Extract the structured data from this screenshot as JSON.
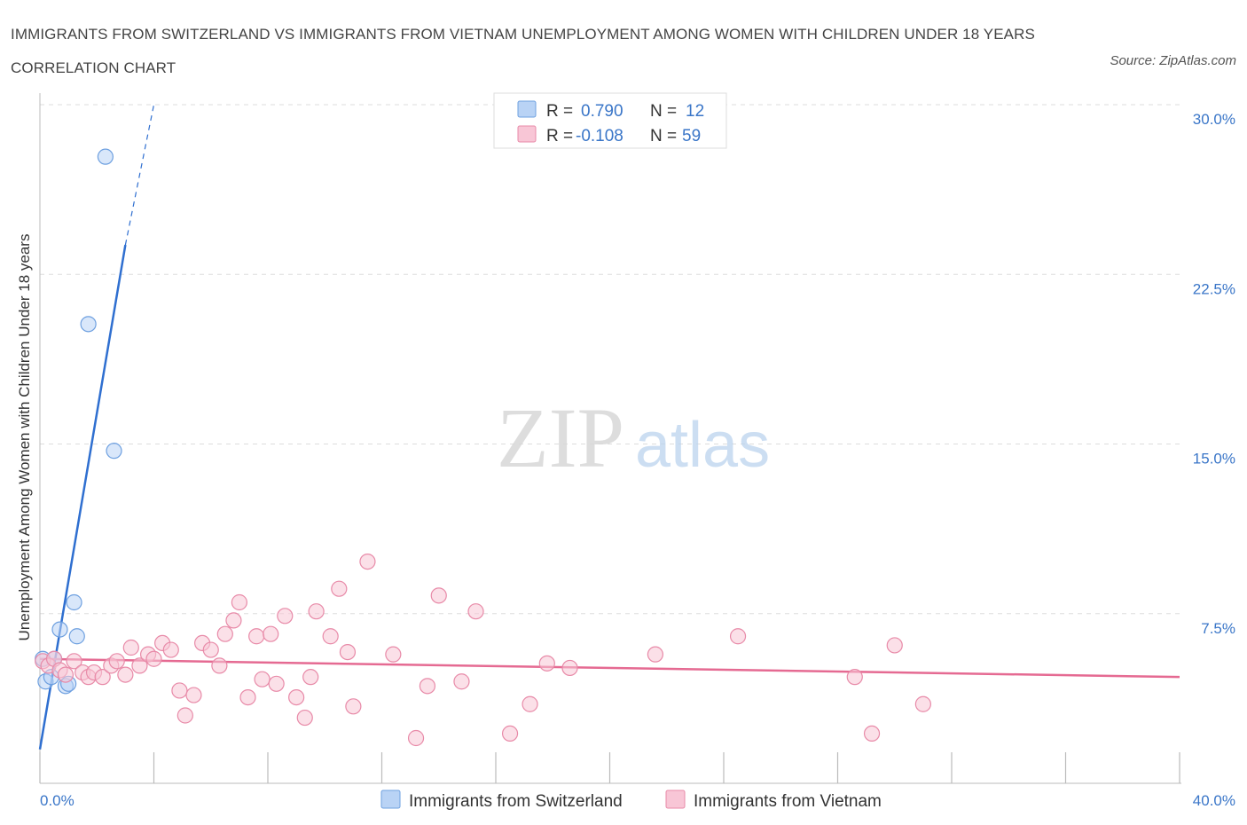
{
  "header": {
    "title": "IMMIGRANTS FROM SWITZERLAND VS IMMIGRANTS FROM VIETNAM UNEMPLOYMENT AMONG WOMEN WITH CHILDREN UNDER 18 YEARS CORRELATION CHART",
    "source": "Source: ZipAtlas.com"
  },
  "colors": {
    "switzerland": "#6ea0e0",
    "switzerland_fill": "#b9d3f5",
    "switzerland_line": "#2f6fd0",
    "vietnam": "#e88aa8",
    "vietnam_fill": "#f8c6d6",
    "vietnam_line": "#e56a92",
    "value_text": "#3a76c8"
  },
  "watermark": {
    "zip": "ZIP",
    "atlas": "atlas"
  },
  "chart_data": {
    "type": "scatter",
    "title": "IMMIGRANTS FROM SWITZERLAND VS IMMIGRANTS FROM VIETNAM UNEMPLOYMENT AMONG WOMEN WITH CHILDREN UNDER 18 YEARS CORRELATION CHART",
    "xlabel": "",
    "ylabel": "Unemployment Among Women with Children Under 18 years",
    "xlim": [
      0,
      40
    ],
    "ylim": [
      0,
      30
    ],
    "x_tick_labels": [
      "0.0%",
      "40.0%"
    ],
    "y_ticks": [
      7.5,
      15.0,
      22.5,
      30.0
    ],
    "y_tick_labels": [
      "7.5%",
      "15.0%",
      "22.5%",
      "30.0%"
    ],
    "grid": true,
    "legend": {
      "placement": "top-center",
      "entries": [
        {
          "r_label": "R =",
          "r_value": "0.790",
          "n_label": "N =",
          "n_value": "12"
        },
        {
          "r_label": "R =",
          "r_value": "-0.108",
          "n_label": "N =",
          "n_value": "59"
        }
      ]
    },
    "series": [
      {
        "name": "Immigrants from Switzerland",
        "r": 0.79,
        "n": 12,
        "points": [
          [
            0.1,
            5.5
          ],
          [
            0.2,
            4.5
          ],
          [
            0.4,
            4.7
          ],
          [
            0.5,
            5.5
          ],
          [
            0.7,
            6.8
          ],
          [
            0.9,
            4.3
          ],
          [
            1.0,
            4.4
          ],
          [
            1.2,
            8.0
          ],
          [
            1.3,
            6.5
          ],
          [
            1.7,
            20.3
          ],
          [
            2.3,
            27.7
          ],
          [
            2.6,
            14.7
          ]
        ],
        "trend": {
          "x0": 0.0,
          "y0": 1.5,
          "x1": 3.0,
          "y1": 23.8,
          "dash_to_x": 4.0,
          "dash_to_y": 30.0
        }
      },
      {
        "name": "Immigrants from Vietnam",
        "r": -0.108,
        "n": 59,
        "points": [
          [
            0.1,
            5.4
          ],
          [
            0.3,
            5.2
          ],
          [
            0.5,
            5.5
          ],
          [
            0.7,
            5.0
          ],
          [
            0.9,
            4.8
          ],
          [
            1.2,
            5.4
          ],
          [
            1.5,
            4.9
          ],
          [
            1.7,
            4.7
          ],
          [
            1.9,
            4.9
          ],
          [
            2.2,
            4.7
          ],
          [
            2.5,
            5.2
          ],
          [
            2.7,
            5.4
          ],
          [
            3.0,
            4.8
          ],
          [
            3.2,
            6.0
          ],
          [
            3.5,
            5.2
          ],
          [
            3.8,
            5.7
          ],
          [
            4.0,
            5.5
          ],
          [
            4.3,
            6.2
          ],
          [
            4.6,
            5.9
          ],
          [
            4.9,
            4.1
          ],
          [
            5.1,
            3.0
          ],
          [
            5.4,
            3.9
          ],
          [
            5.7,
            6.2
          ],
          [
            6.0,
            5.9
          ],
          [
            6.3,
            5.2
          ],
          [
            6.5,
            6.6
          ],
          [
            6.8,
            7.2
          ],
          [
            7.0,
            8.0
          ],
          [
            7.3,
            3.8
          ],
          [
            7.6,
            6.5
          ],
          [
            7.8,
            4.6
          ],
          [
            8.1,
            6.6
          ],
          [
            8.3,
            4.4
          ],
          [
            8.6,
            7.4
          ],
          [
            9.0,
            3.8
          ],
          [
            9.3,
            2.9
          ],
          [
            9.5,
            4.7
          ],
          [
            9.7,
            7.6
          ],
          [
            10.2,
            6.5
          ],
          [
            10.5,
            8.6
          ],
          [
            10.8,
            5.8
          ],
          [
            11.0,
            3.4
          ],
          [
            11.5,
            9.8
          ],
          [
            12.4,
            5.7
          ],
          [
            13.2,
            2.0
          ],
          [
            13.6,
            4.3
          ],
          [
            14.0,
            8.3
          ],
          [
            14.8,
            4.5
          ],
          [
            15.3,
            7.6
          ],
          [
            16.5,
            2.2
          ],
          [
            17.2,
            3.5
          ],
          [
            17.8,
            5.3
          ],
          [
            18.6,
            5.1
          ],
          [
            21.6,
            5.7
          ],
          [
            24.5,
            6.5
          ],
          [
            28.6,
            4.7
          ],
          [
            29.2,
            2.2
          ],
          [
            30.0,
            6.1
          ],
          [
            31.0,
            3.5
          ]
        ],
        "trend": {
          "x0": 0.0,
          "y0": 5.5,
          "x1": 40.0,
          "y1": 4.7
        }
      }
    ]
  },
  "bottom_legend": {
    "items": [
      {
        "label": "Immigrants from Switzerland"
      },
      {
        "label": "Immigrants from Vietnam"
      }
    ]
  }
}
